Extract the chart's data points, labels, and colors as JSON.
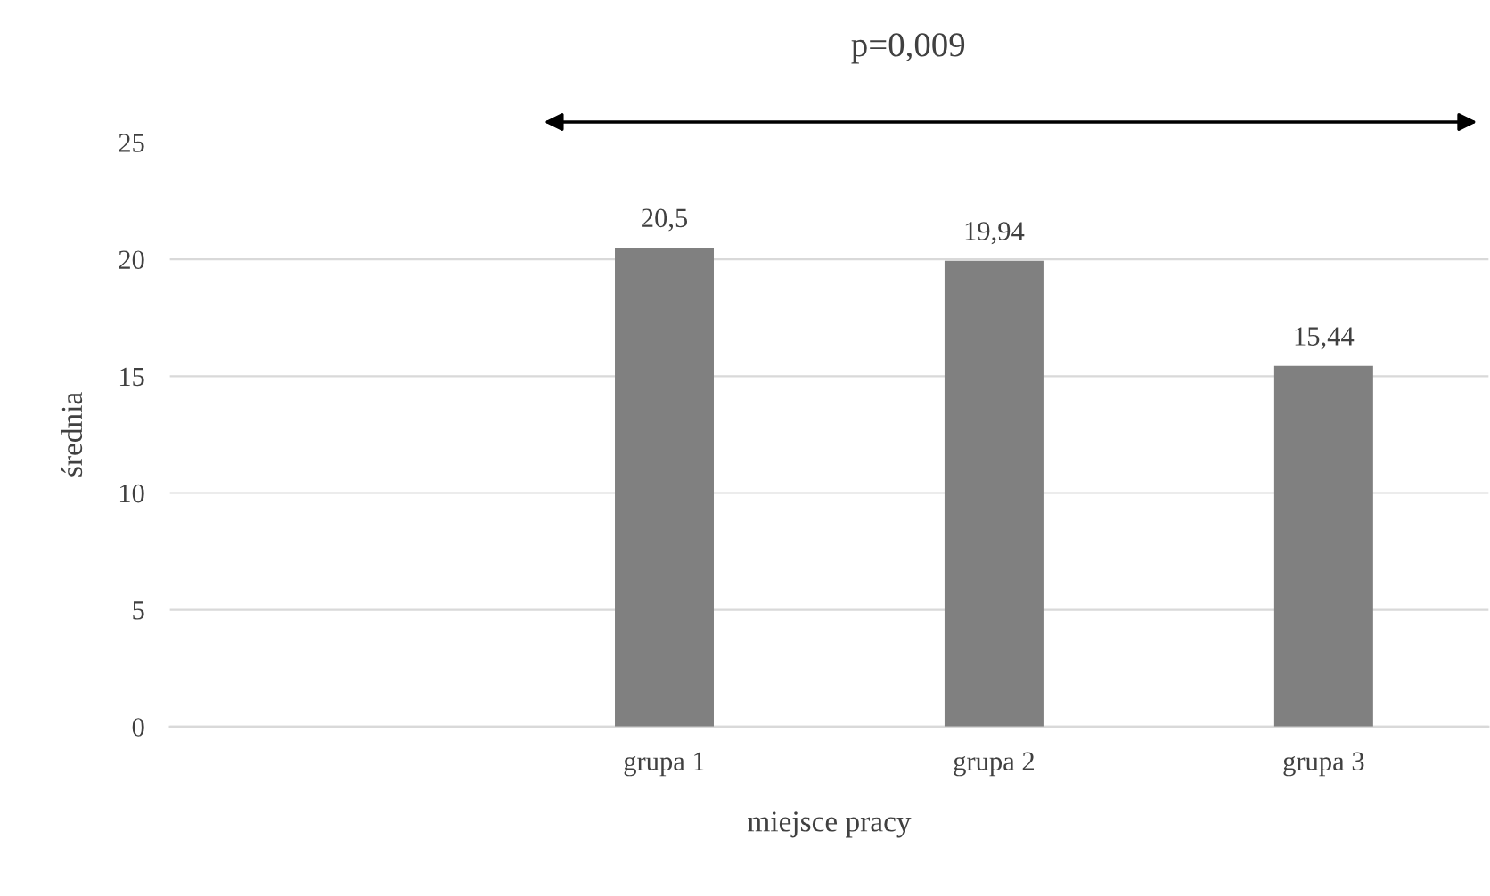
{
  "chart_data": {
    "type": "bar",
    "categories": [
      null,
      "grupa 1",
      "grupa 2",
      "grupa 3"
    ],
    "values": [
      null,
      20.5,
      19.94,
      15.44
    ],
    "value_labels": [
      null,
      "20,5",
      "19,94",
      "15,44"
    ],
    "color": "#808080",
    "xlabel": "miejsce pracy",
    "ylabel": "średnia",
    "ylim": [
      0,
      25
    ],
    "yticks": [
      0,
      5,
      10,
      15,
      20,
      25
    ],
    "grid": "y",
    "legend": false,
    "annotations": [
      "p=0,009"
    ]
  }
}
